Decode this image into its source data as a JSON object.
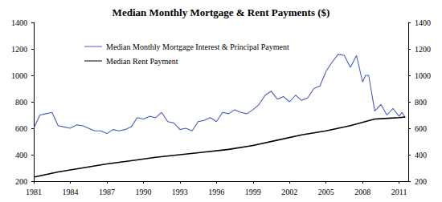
{
  "chart_data": {
    "type": "line",
    "title": "Median Monthly Mortgage & Rent Payments ($)",
    "xlim": [
      1981,
      2011.75
    ],
    "xticks": [
      1981,
      1984,
      1987,
      1990,
      1993,
      1996,
      1999,
      2002,
      2005,
      2008,
      2011
    ],
    "ylim": [
      200,
      1400
    ],
    "yticks": [
      200,
      400,
      600,
      800,
      1000,
      1200,
      1400
    ],
    "y2lim": [
      200,
      1400
    ],
    "y2ticks": [
      200,
      400,
      600,
      800,
      1000,
      1200,
      1400
    ],
    "grid": false,
    "legend": "upper left",
    "series": [
      {
        "name": "Median Monthly Mortgage Interest & Principal Payment",
        "color": "#4a5cc8",
        "x": [
          1981,
          1981.5,
          1982,
          1982.5,
          1983,
          1983.5,
          1984,
          1984.5,
          1985,
          1985.5,
          1986,
          1986.5,
          1987,
          1987.5,
          1988,
          1988.5,
          1989,
          1989.5,
          1990,
          1990.5,
          1991,
          1991.5,
          1992,
          1992.5,
          1993,
          1993.5,
          1994,
          1994.5,
          1995,
          1995.5,
          1996,
          1996.5,
          1997,
          1997.5,
          1998,
          1998.5,
          1999,
          1999.5,
          2000,
          2000.5,
          2001,
          2001.5,
          2002,
          2002.5,
          2003,
          2003.5,
          2004,
          2004.5,
          2005,
          2005.5,
          2006,
          2006.5,
          2007,
          2007.5,
          2008,
          2008.25,
          2008.5,
          2009,
          2009.5,
          2010,
          2010.5,
          2011,
          2011.25,
          2011.5
        ],
        "values": [
          600,
          700,
          710,
          720,
          620,
          610,
          600,
          625,
          620,
          600,
          580,
          580,
          560,
          590,
          580,
          590,
          610,
          680,
          670,
          690,
          680,
          720,
          650,
          640,
          590,
          600,
          580,
          650,
          660,
          680,
          650,
          720,
          710,
          740,
          720,
          710,
          740,
          780,
          850,
          880,
          820,
          840,
          800,
          850,
          810,
          830,
          900,
          920,
          1030,
          1100,
          1160,
          1150,
          1060,
          1150,
          950,
          1000,
          1000,
          730,
          780,
          700,
          750,
          690,
          720,
          680
        ]
      },
      {
        "name": "Median Rent Payment",
        "color": "#000000",
        "x": [
          1981,
          1983,
          1985,
          1987,
          1989,
          1991,
          1993,
          1995,
          1997,
          1999,
          2001,
          2003,
          2005,
          2007,
          2009,
          2010,
          2011,
          2011.5
        ],
        "values": [
          230,
          270,
          300,
          330,
          355,
          380,
          400,
          420,
          440,
          470,
          510,
          550,
          580,
          620,
          670,
          675,
          680,
          685
        ]
      }
    ]
  }
}
